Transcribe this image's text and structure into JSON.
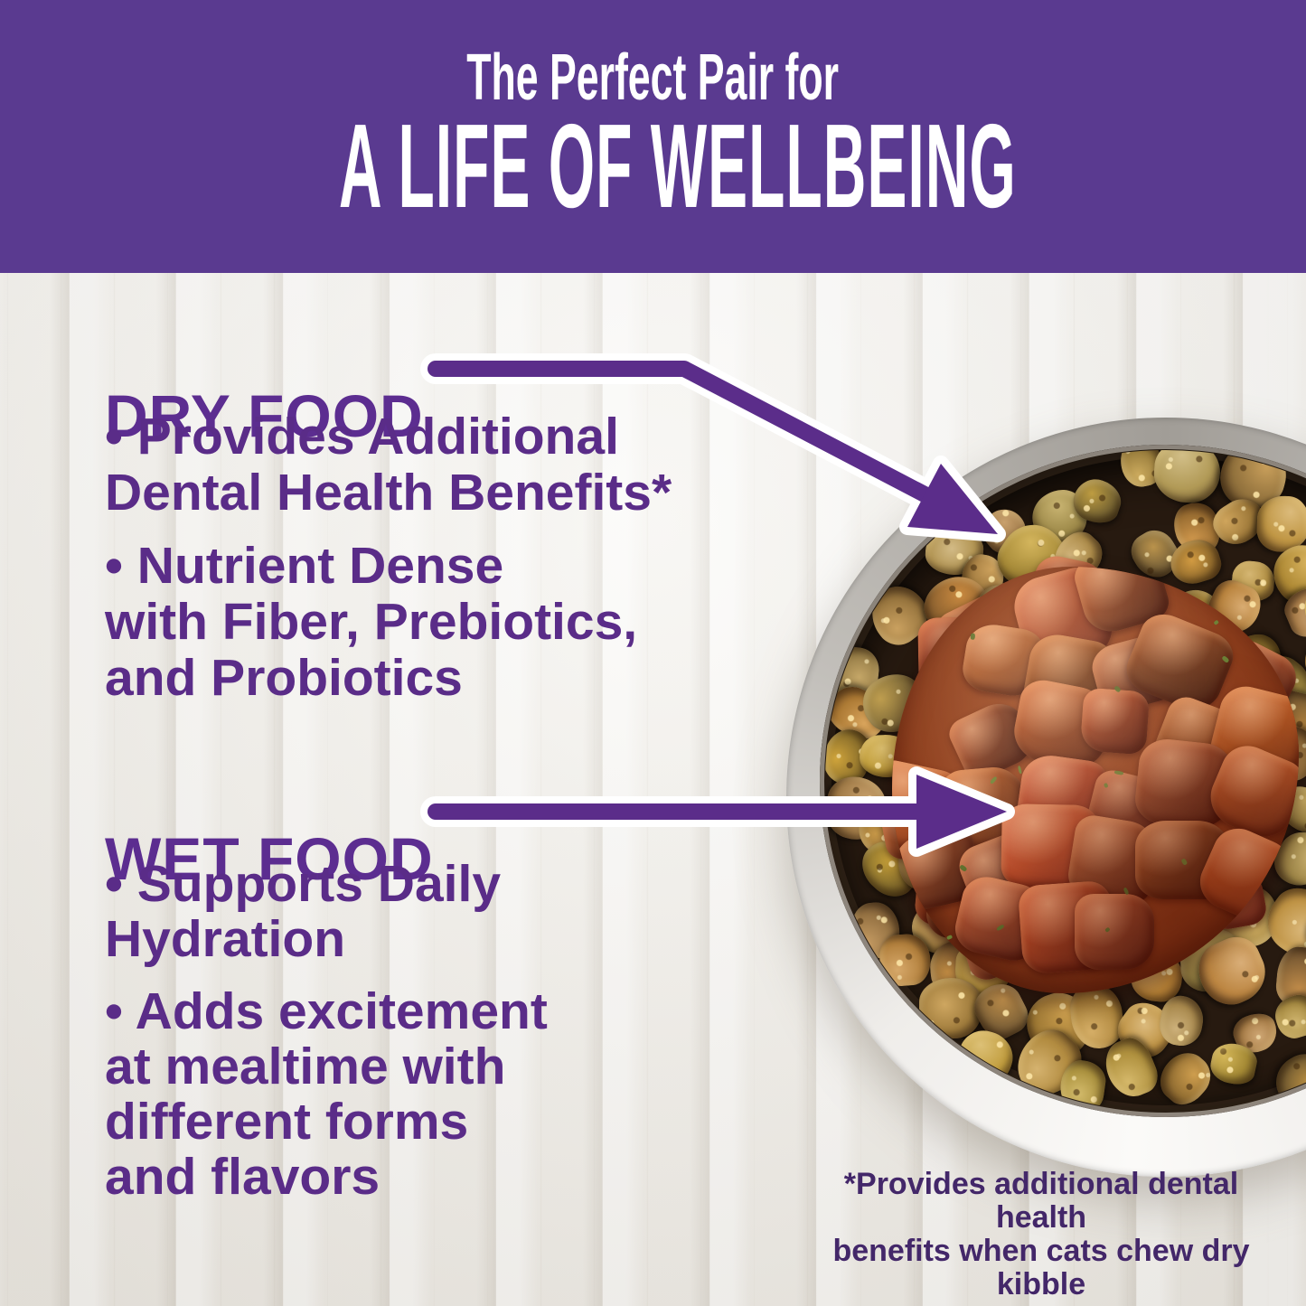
{
  "banner": {
    "line1": "The Perfect Pair for",
    "line2": "A LIFE OF WELLBEING"
  },
  "dry": {
    "heading": "DRY FOOD",
    "bullets": [
      {
        "lines": [
          "• Provides Additional",
          "Dental Health Benefits*"
        ]
      },
      {
        "lines": [
          "• Nutrient Dense",
          "with Fiber, Prebiotics,",
          "and Probiotics"
        ]
      }
    ]
  },
  "wet": {
    "heading": "WET FOOD",
    "bullets": [
      {
        "lines": [
          "• Supports Daily",
          "Hydration"
        ]
      },
      {
        "lines": [
          "• Adds excitement",
          "at mealtime with",
          "different forms",
          "and flavors"
        ]
      }
    ]
  },
  "footnote": {
    "lines": [
      "*Provides additional dental health",
      "benefits when cats chew dry kibble"
    ]
  },
  "photo": {
    "bowl_type": "stainless-steel-bowl",
    "bowl_contents": [
      "dry kibble",
      "wet food chunks"
    ]
  },
  "colors": {
    "banner_background": "#5a3a90",
    "brand_purple": "#5a2c88",
    "heading_purple": "#5c2d90",
    "footnote_purple": "#432769",
    "headline_text": "#ffffff"
  }
}
